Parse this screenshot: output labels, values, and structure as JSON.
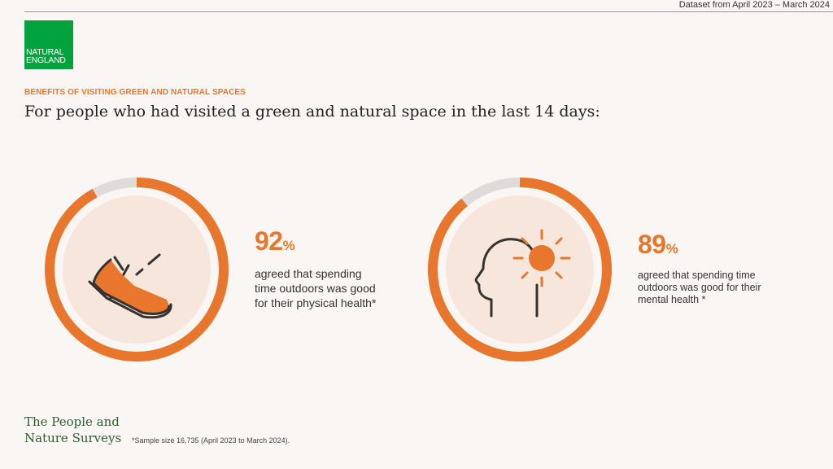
{
  "header": {
    "dataset": "Dataset from April 2023 – March 2024",
    "logo_line1": "NATURAL",
    "logo_line2": "ENGLAND"
  },
  "kicker": "BENEFITS OF VISITING GREEN AND NATURAL SPACES",
  "headline": "For people who had visited a green and natural space in the last 14 days:",
  "stats": [
    {
      "value": 92,
      "value_text": "92",
      "unit": "%",
      "description": [
        "agreed that spending",
        "time outdoors was good",
        "for their physical health*"
      ],
      "icon": "shoe-icon"
    },
    {
      "value": 89,
      "value_text": "89",
      "unit": "%",
      "description": [
        "agreed that spending time",
        "outdoors was good for their",
        "mental health *"
      ],
      "icon": "head-sun-icon"
    }
  ],
  "colors": {
    "accent": "#e8762c",
    "ring_background": "#dedcda",
    "circle_fill": "#f6e6db",
    "brand_green": "#00a33e"
  },
  "footer": {
    "brand_line1": "The People and",
    "brand_line2": "Nature Surveys",
    "footnote": "*Sample size 16,735 (April 2023 to March 2024)."
  }
}
